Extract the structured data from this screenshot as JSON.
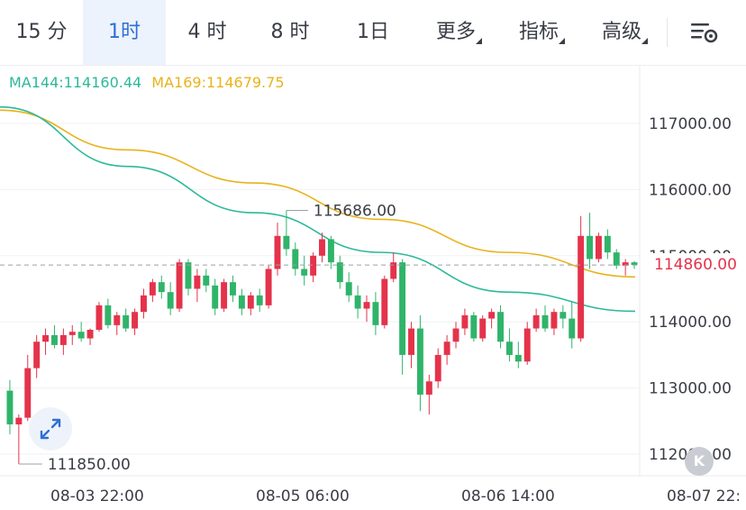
{
  "tabs": [
    {
      "label": "15 分",
      "active": false,
      "dropdown": false
    },
    {
      "label": "1时",
      "active": true,
      "dropdown": false
    },
    {
      "label": "4 时",
      "active": false,
      "dropdown": false
    },
    {
      "label": "8 时",
      "active": false,
      "dropdown": false
    },
    {
      "label": "1日",
      "active": false,
      "dropdown": false
    },
    {
      "label": "更多",
      "active": false,
      "dropdown": true
    },
    {
      "label": "指标",
      "active": false,
      "dropdown": true
    },
    {
      "label": "高级",
      "active": false,
      "dropdown": true
    }
  ],
  "settings_icon": "chart-settings-icon",
  "ma": [
    {
      "label": "MA144:114160.44",
      "color": "#2db89a"
    },
    {
      "label": "MA169:114679.75",
      "color": "#e8b31c"
    }
  ],
  "last_price": "114860.00",
  "high_label": "115686.00",
  "low_label": "111850.00",
  "badge_text": "K",
  "colors": {
    "up": "#e4334b",
    "down": "#2fb46a",
    "ma144": "#2db89a",
    "ma169": "#e8b31c",
    "accent": "#2f6fd6"
  },
  "chart_data": {
    "type": "candlestick",
    "y_ticks": [
      "117000.00",
      "116000.00",
      "115000.00",
      "114000.00",
      "113000.00",
      "112000.00"
    ],
    "x_ticks": [
      "08-03 22:00",
      "08-05 06:00",
      "08-06 14:00",
      "08-07 22:"
    ],
    "ylim": [
      111800,
      117800
    ],
    "ohlc": [
      [
        112960,
        113120,
        112300,
        112450
      ],
      [
        112450,
        112600,
        111850,
        112550
      ],
      [
        112550,
        113500,
        112500,
        113300
      ],
      [
        113300,
        113800,
        113150,
        113700
      ],
      [
        113700,
        113900,
        113500,
        113800
      ],
      [
        113800,
        113950,
        113600,
        113650
      ],
      [
        113650,
        113900,
        113500,
        113800
      ],
      [
        113800,
        113950,
        113650,
        113850
      ],
      [
        113850,
        114000,
        113700,
        113750
      ],
      [
        113750,
        113900,
        113650,
        113880
      ],
      [
        113880,
        114300,
        113850,
        114250
      ],
      [
        114250,
        114350,
        113900,
        113950
      ],
      [
        113950,
        114150,
        113800,
        114100
      ],
      [
        114100,
        114200,
        113850,
        113900
      ],
      [
        113900,
        114200,
        113800,
        114150
      ],
      [
        114150,
        114500,
        114050,
        114400
      ],
      [
        114400,
        114650,
        114300,
        114600
      ],
      [
        114600,
        114700,
        114350,
        114450
      ],
      [
        114450,
        114600,
        114100,
        114200
      ],
      [
        114200,
        114950,
        114150,
        114900
      ],
      [
        114900,
        114950,
        114400,
        114500
      ],
      [
        114500,
        114800,
        114300,
        114700
      ],
      [
        114700,
        114800,
        114450,
        114550
      ],
      [
        114550,
        114650,
        114100,
        114200
      ],
      [
        114200,
        114650,
        114150,
        114600
      ],
      [
        114600,
        114700,
        114300,
        114400
      ],
      [
        114400,
        114500,
        114100,
        114200
      ],
      [
        114200,
        114450,
        114100,
        114400
      ],
      [
        114400,
        114500,
        114150,
        114250
      ],
      [
        114250,
        114850,
        114200,
        114800
      ],
      [
        114800,
        115500,
        114700,
        115300
      ],
      [
        115300,
        115686,
        115000,
        115100
      ],
      [
        115100,
        115200,
        114700,
        114800
      ],
      [
        114800,
        115000,
        114550,
        114700
      ],
      [
        114700,
        115050,
        114600,
        115000
      ],
      [
        115000,
        115350,
        114900,
        115250
      ],
      [
        115250,
        115300,
        114800,
        114900
      ],
      [
        114900,
        115000,
        114500,
        114600
      ],
      [
        114600,
        114750,
        114300,
        114400
      ],
      [
        114400,
        114550,
        114050,
        114200
      ],
      [
        114200,
        114400,
        114000,
        114300
      ],
      [
        114300,
        114450,
        113800,
        113950
      ],
      [
        113950,
        114700,
        113900,
        114650
      ],
      [
        114650,
        115050,
        114600,
        114900
      ],
      [
        114900,
        114950,
        113200,
        113500
      ],
      [
        113500,
        114000,
        113300,
        113900
      ],
      [
        113900,
        114100,
        112650,
        112900
      ],
      [
        112900,
        113200,
        112600,
        113100
      ],
      [
        113100,
        113600,
        113000,
        113500
      ],
      [
        113500,
        113800,
        113350,
        113700
      ],
      [
        113700,
        114000,
        113600,
        113900
      ],
      [
        113900,
        114200,
        113800,
        114100
      ],
      [
        114100,
        114150,
        113700,
        113750
      ],
      [
        113750,
        114100,
        113700,
        114050
      ],
      [
        114050,
        114200,
        113900,
        114150
      ],
      [
        114150,
        114250,
        113600,
        113700
      ],
      [
        113700,
        113900,
        113400,
        113500
      ],
      [
        113500,
        113700,
        113300,
        113400
      ],
      [
        113400,
        114000,
        113350,
        113900
      ],
      [
        113900,
        114200,
        113850,
        114100
      ],
      [
        114100,
        114250,
        113850,
        113900
      ],
      [
        113900,
        114200,
        113800,
        114150
      ],
      [
        114150,
        114250,
        113900,
        114050
      ],
      [
        114050,
        114300,
        113600,
        113750
      ],
      [
        113750,
        115600,
        113700,
        115300
      ],
      [
        115300,
        115650,
        114800,
        114950
      ],
      [
        114950,
        115350,
        114900,
        115300
      ],
      [
        115300,
        115400,
        114950,
        115050
      ],
      [
        115050,
        115100,
        114800,
        114850
      ],
      [
        114850,
        114950,
        114700,
        114900
      ],
      [
        114900,
        114920,
        114800,
        114860
      ]
    ],
    "ma144_values": [
      117250,
      116350,
      115650,
      115050,
      114450,
      114160
    ],
    "ma169_values": [
      117200,
      116600,
      116100,
      115550,
      115050,
      114680
    ]
  }
}
